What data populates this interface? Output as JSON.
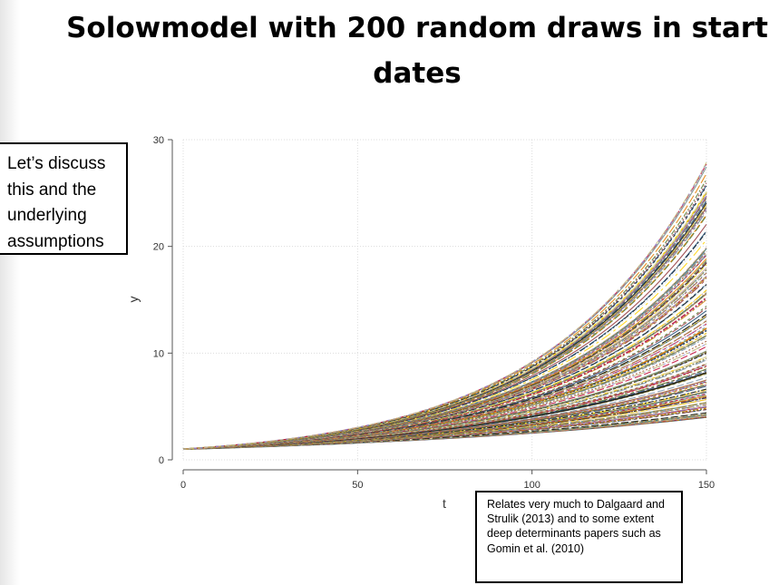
{
  "slide": {
    "title_line1": "Solowmodel with 200 random draws in start",
    "title_line2": "dates"
  },
  "notes": {
    "left_callout": "Let’s discuss this and the underlying assumptions",
    "right_callout": "Relates very much to Dalgaard and Strulik (2013) and to some extent deep determinants papers such as Gomin et al. (2010)"
  },
  "chart_data": {
    "type": "line",
    "title": "",
    "xlabel": "t",
    "ylabel": "y",
    "xlim": [
      0,
      150
    ],
    "ylim": [
      0,
      30
    ],
    "xticks": [
      0,
      50,
      100,
      150
    ],
    "yticks": [
      0,
      10,
      20,
      30
    ],
    "grid": true,
    "legend": "none",
    "series_count": 200,
    "start_value": 1,
    "end_value_range": [
      4,
      28
    ],
    "series_end_values": [
      4.0,
      4.3,
      4.6,
      5.0,
      5.4,
      5.8,
      6.2,
      6.7,
      7.2,
      7.8,
      8.4,
      9.0,
      9.7,
      10.4,
      11.2,
      12.0,
      12.9,
      13.8,
      14.8,
      15.9,
      17.0,
      18.2,
      19.4,
      20.7,
      22.0,
      23.3,
      24.6,
      26.0,
      27.0,
      28.0
    ],
    "palette": [
      "#1a476f",
      "#90353b",
      "#55752f",
      "#e37e00",
      "#6e8e84",
      "#c10534",
      "#938dd2",
      "#cac27e",
      "#a0522d",
      "#7b92a8",
      "#2d6d66",
      "#9c8847",
      "#bfa19c",
      "#ffd200",
      "#d9e6eb",
      "#000000"
    ]
  }
}
